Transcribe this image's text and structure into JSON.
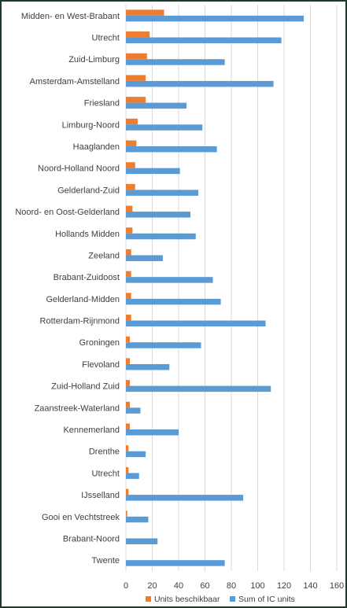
{
  "chart_data": {
    "type": "bar",
    "orientation": "horizontal",
    "categories": [
      "Midden- en West-Brabant",
      "Utrecht",
      "Zuid-Limburg",
      "Amsterdam-Amstelland",
      "Friesland",
      "Limburg-Noord",
      "Haaglanden",
      "Noord-Holland Noord",
      "Gelderland-Zuid",
      "Noord- en Oost-Gelderland",
      "Hollands Midden",
      "Zeeland",
      "Brabant-Zuidoost",
      "Gelderland-Midden",
      "Rotterdam-Rijnmond",
      "Groningen",
      "Flevoland",
      "Zuid-Holland Zuid",
      "Zaanstreek-Waterland",
      "Kennemerland",
      "Drenthe",
      "Utrecht",
      "IJsselland",
      "Gooi en Vechtstreek",
      "Brabant-Noord",
      "Twente"
    ],
    "series": [
      {
        "name": "Units beschikbaar",
        "color": "#ed7d31",
        "values": [
          29,
          18,
          16,
          15,
          15,
          9,
          8,
          7,
          7,
          5,
          5,
          4,
          4,
          4,
          4,
          3,
          3,
          3,
          3,
          3,
          2,
          2,
          2,
          1,
          0,
          0
        ]
      },
      {
        "name": "Sum of IC units",
        "color": "#5b9bd5",
        "values": [
          135,
          118,
          75,
          112,
          46,
          58,
          69,
          41,
          55,
          49,
          53,
          28,
          66,
          72,
          106,
          57,
          33,
          110,
          11,
          40,
          15,
          10,
          89,
          17,
          24,
          75
        ]
      }
    ],
    "xlim": [
      0,
      160
    ],
    "xticks": [
      "0",
      "20",
      "40",
      "60",
      "80",
      "100",
      "120",
      "140",
      "160"
    ],
    "grid": true,
    "legend_position": "bottom"
  }
}
